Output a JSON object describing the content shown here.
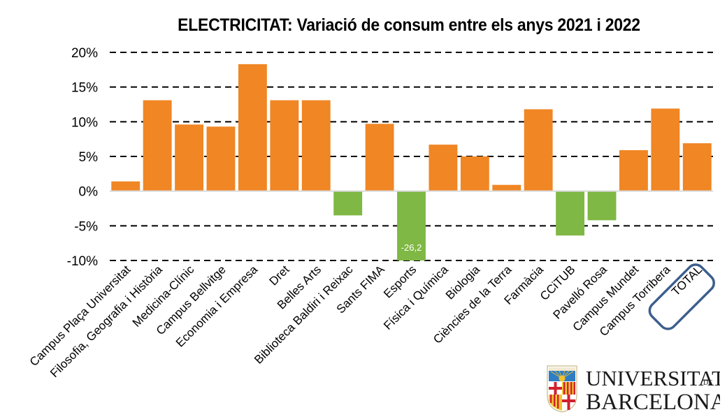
{
  "chart_data": {
    "type": "bar",
    "title": "ELECTRICITAT: Variació de consum entre els anys 2021 i 2022",
    "xlabel": "",
    "ylabel": "",
    "ylim": [
      -10,
      20
    ],
    "yticks": [
      20,
      15,
      10,
      5,
      0,
      -5,
      -10
    ],
    "ytick_labels": [
      "20%",
      "15%",
      "10%",
      "5%",
      "0%",
      "-5%",
      "-10%"
    ],
    "grid": true,
    "grid_style": "dashed",
    "legend": "none",
    "colors": {
      "positive": "#F08624",
      "negative": "#7FB844",
      "highlight_box": "#3D5E8C",
      "zero_line": "#D9D9D9",
      "grid": "#000000"
    },
    "categories": [
      "Campus Plaça Universitat",
      "Filosofia, Geografia i Història",
      "Medicina-Clínic",
      "Campus Bellvitge",
      "Economia i Empresa",
      "Dret",
      "Belles Arts",
      "Biblioteca Baldiri i Reixac",
      "Sants FIMA",
      "Esports",
      "Física i Química",
      "Biologia",
      "Ciències de la Terra",
      "Farmàcia",
      "CCiTUB",
      "Pavelló Rosa",
      "Campus Mundet",
      "Campus Torribera",
      "TOTAL"
    ],
    "values": [
      1.4,
      13.1,
      9.6,
      9.3,
      18.3,
      13.1,
      13.1,
      -3.5,
      9.7,
      -26.2,
      6.7,
      5.0,
      0.9,
      11.8,
      -6.4,
      -4.2,
      5.9,
      11.9,
      6.9
    ],
    "annotations": [
      {
        "category": "Esports",
        "text": "-26,2",
        "note": "bar clipped at axis minimum"
      },
      {
        "category": "TOTAL",
        "text": "highlighted with rounded box"
      }
    ]
  },
  "logo": {
    "line1": "UNIVERSITAT",
    "line1_suffix": "DE",
    "line2": "BARCELONA"
  }
}
